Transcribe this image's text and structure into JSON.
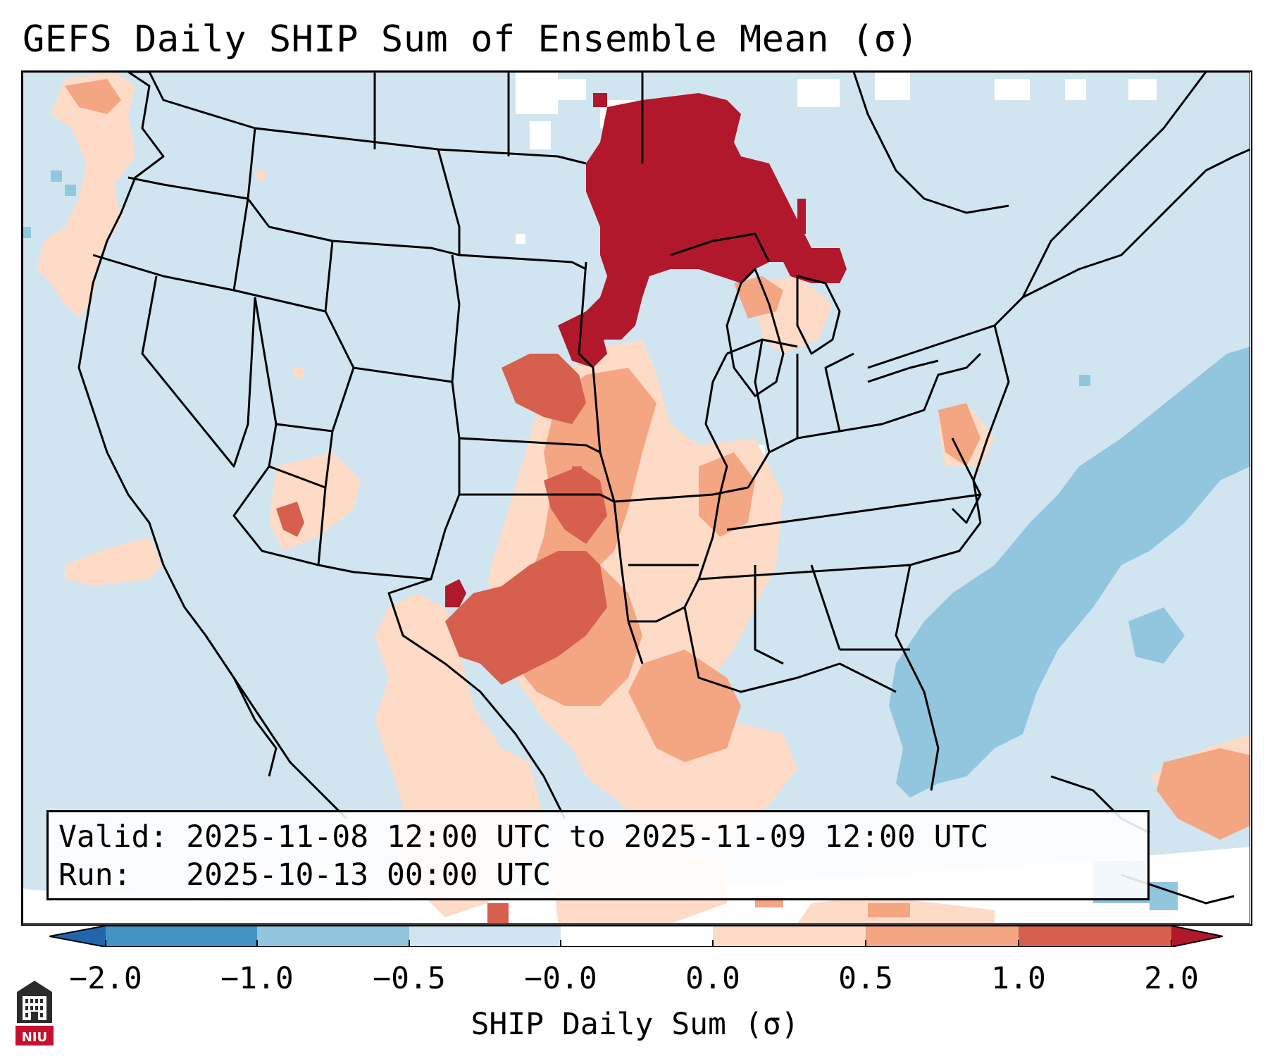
{
  "title": "GEFS Daily SHIP Sum of Ensemble Mean (σ)",
  "info_box": {
    "valid_line": "Valid: 2025-11-08 12:00 UTC to 2025-11-09 12:00 UTC",
    "run_line": "Run:   2025-10-13 00:00 UTC"
  },
  "colorbar": {
    "label": "SHIP Daily Sum (σ)",
    "ticks": [
      "−2.0",
      "−1.0",
      "−0.5",
      "−0.0",
      "0.0",
      "0.5",
      "1.0",
      "2.0"
    ],
    "colors": [
      "#4393c3",
      "#92c5de",
      "#d1e5f0",
      "#ffffff",
      "#fddbc7",
      "#f4a582",
      "#d6604d",
      "#b2182b"
    ]
  },
  "legend_colors": {
    "very_low": "#4393c3",
    "low": "#92c5de",
    "slightly_low": "#d1e5f0",
    "neutral": "#ffffff",
    "slightly_high": "#fddbc7",
    "high": "#f4a582",
    "very_high": "#d6604d",
    "extreme": "#b2182b"
  },
  "logo": {
    "text": "NIU",
    "icon": "niu-building-logo-icon"
  }
}
